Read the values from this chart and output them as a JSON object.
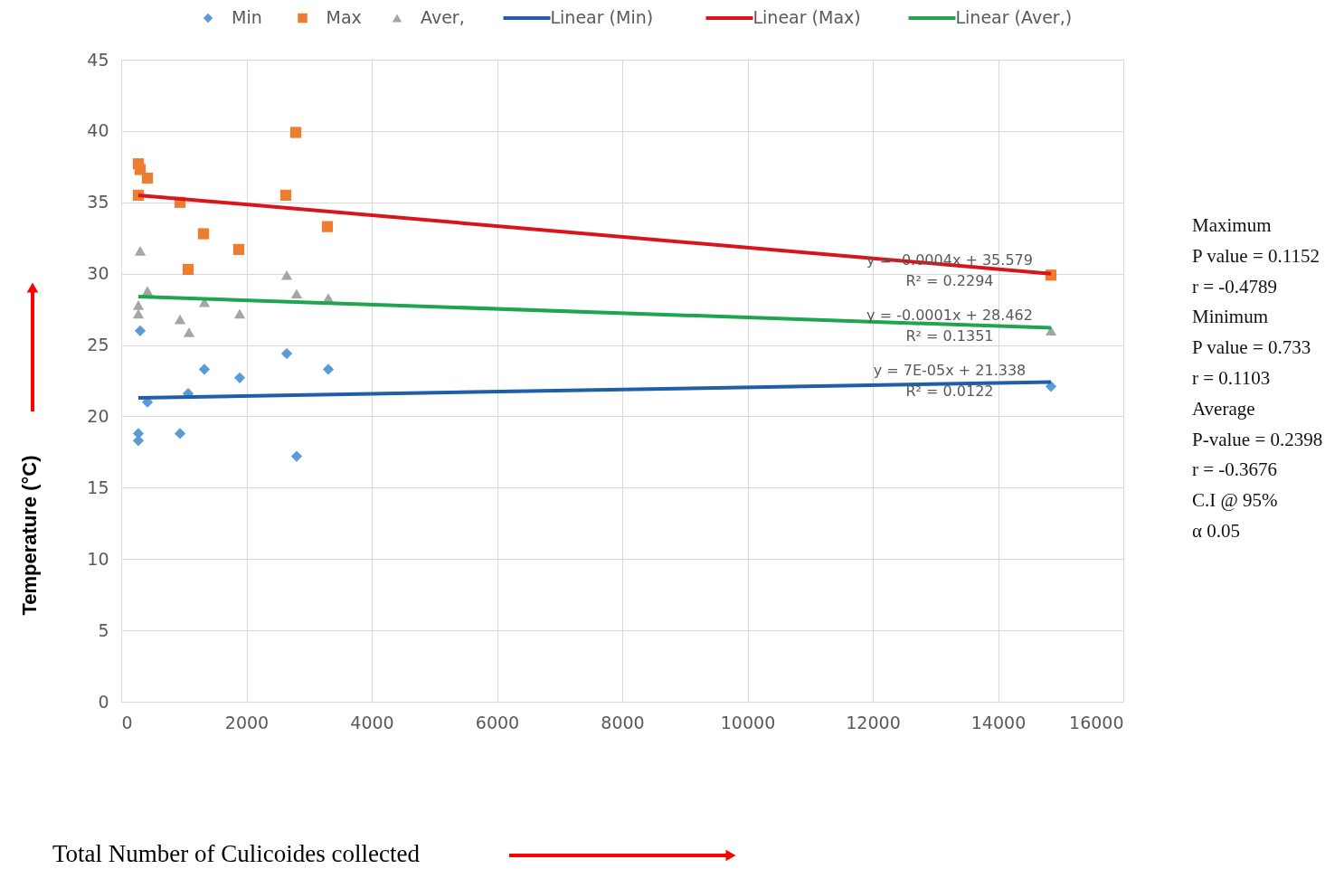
{
  "chart_data": {
    "type": "scatter",
    "xlabel": "Total Number of Culicoides collected",
    "ylabel": "Temperature (°C)",
    "xlim": [
      0,
      16000
    ],
    "xticks": [
      0,
      2000,
      4000,
      6000,
      8000,
      10000,
      12000,
      14000,
      16000
    ],
    "ylim": [
      0,
      45
    ],
    "yticks": [
      0,
      5,
      10,
      15,
      20,
      25,
      30,
      35,
      40,
      45
    ],
    "grid": true,
    "legend": "top",
    "series": [
      {
        "name": "Min",
        "marker": "diamond",
        "color": "#5b9bd5",
        "x": [
          303,
          419,
          1069,
          1328,
          1892,
          274,
          274,
          939,
          2643,
          2801,
          3307,
          14845
        ],
        "values": [
          26.0,
          21.0,
          21.6,
          23.3,
          22.7,
          18.8,
          18.3,
          18.8,
          24.4,
          17.2,
          23.3,
          22.1
        ]
      },
      {
        "name": "Max",
        "marker": "square",
        "color": "#ed7d31",
        "x": [
          274,
          303,
          419,
          274,
          939,
          1314,
          1069,
          1877,
          2787,
          2628,
          3292,
          14845
        ],
        "values": [
          37.7,
          37.3,
          36.7,
          35.5,
          35.0,
          32.8,
          30.3,
          31.7,
          39.9,
          35.5,
          33.3,
          29.9
        ]
      },
      {
        "name": "Aver,",
        "marker": "triangle",
        "color": "#a5a5a5",
        "x": [
          303,
          419,
          274,
          274,
          939,
          1083,
          1328,
          1892,
          2643,
          2801,
          3307,
          14845
        ],
        "values": [
          31.6,
          28.8,
          27.8,
          27.2,
          26.8,
          25.9,
          28.0,
          27.2,
          29.9,
          28.6,
          28.3,
          26.0
        ]
      },
      {
        "name": "Linear (Min)",
        "type": "line",
        "line_style": "solid",
        "color": "#1f5fa8",
        "x": [
          274,
          14845
        ],
        "values": [
          21.3,
          22.4
        ]
      },
      {
        "name": "Linear (Max)",
        "type": "line",
        "line_style": "solid",
        "color": "#d9141b",
        "x": [
          274,
          14845
        ],
        "values": [
          35.5,
          30.0
        ]
      },
      {
        "name": "Linear (Aver,)",
        "type": "line",
        "line_style": "solid",
        "color": "#1fa550",
        "x": [
          274,
          14845
        ],
        "values": [
          28.4,
          26.2
        ]
      }
    ],
    "annotations": [
      "y = -0.0004x + 35.579",
      "R² = 0.2294",
      "y = -0.0001x + 28.462",
      "R² = 0.1351",
      "y = 7E-05x + 21.338",
      "R² = 0.0122",
      "Maximum",
      "P value = 0.1152",
      "r = -0.4789",
      "Minimum",
      "P value = 0.733",
      "r = 0.1103",
      "Average",
      "P-value = 0.2398",
      "r = -0.3676",
      "C.I @ 95%",
      "α 0.05"
    ]
  }
}
